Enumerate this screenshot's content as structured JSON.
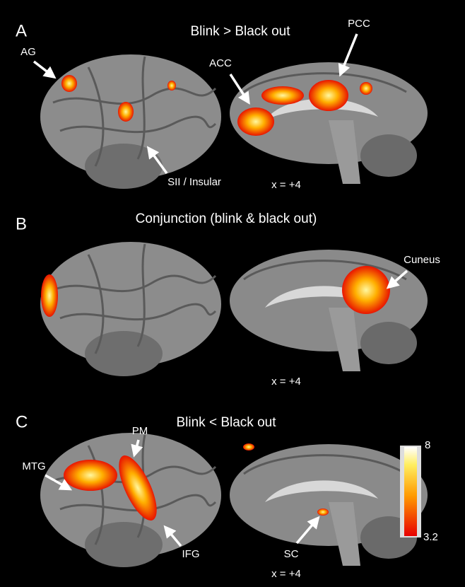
{
  "panels": [
    {
      "letter": "A",
      "title": "Blink > Black out",
      "coordinate": "x = +4",
      "labels": [
        "AG",
        "ACC",
        "PCC",
        "SII / Insular"
      ]
    },
    {
      "letter": "B",
      "title": "Conjunction (blink & black out)",
      "coordinate": "x = +4",
      "labels": [
        "Cuneus"
      ]
    },
    {
      "letter": "C",
      "title": "Blink < Black out",
      "coordinate": "x = +4",
      "labels": [
        "MTG",
        "PM",
        "IFG",
        "SC"
      ]
    }
  ],
  "colorbar": {
    "max": 8,
    "min": 3.2
  }
}
